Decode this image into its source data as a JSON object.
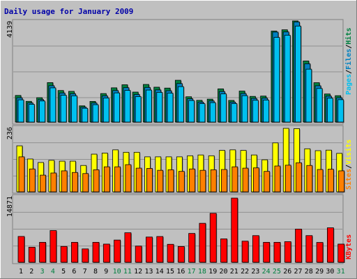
{
  "title": "Daily usage for January 2009",
  "colors": {
    "background": "#c0c0c0",
    "pages": "#00c0f0",
    "files": "#0080c0",
    "hits": "#008040",
    "visits": "#ffff00",
    "sites": "#ff8000",
    "kbytes": "#ff0000",
    "title": "#0000a8",
    "weekend_label": "#008040"
  },
  "chart_data": [
    {
      "type": "bar",
      "panel": "hits",
      "max_label": "4139",
      "ylim": [
        0,
        4139
      ],
      "legend": [
        "Pages",
        "Files",
        "Hits"
      ],
      "categories": [
        "1",
        "2",
        "3",
        "4",
        "5",
        "6",
        "7",
        "8",
        "9",
        "10",
        "11",
        "12",
        "13",
        "14",
        "15",
        "16",
        "17",
        "18",
        "19",
        "20",
        "21",
        "22",
        "23",
        "24",
        "25",
        "26",
        "27",
        "28",
        "29",
        "30",
        "31"
      ],
      "weekend_days": [
        "3",
        "4",
        "10",
        "11",
        "17",
        "18",
        "24",
        "25",
        "31"
      ],
      "series": [
        {
          "name": "Hits",
          "values": [
            1090,
            848,
            998,
            1615,
            1292,
            1257,
            664,
            845,
            1166,
            1402,
            1527,
            1227,
            1540,
            1428,
            1391,
            1711,
            1036,
            890,
            938,
            1359,
            887,
            1269,
            1051,
            1064,
            3723,
            3777,
            4139,
            2501,
            1612,
            1150,
            1080
          ]
        },
        {
          "name": "Files",
          "values": [
            995,
            784,
            920,
            1488,
            1191,
            1159,
            611,
            779,
            1073,
            1291,
            1407,
            1129,
            1418,
            1317,
            1283,
            1577,
            954,
            816,
            864,
            1250,
            816,
            1169,
            968,
            981,
            3684,
            3689,
            4097,
            2387,
            1486,
            1060,
            995
          ]
        },
        {
          "name": "Pages",
          "values": [
            910,
            726,
            864,
            1401,
            1100,
            1076,
            564,
            712,
            987,
            1194,
            1296,
            1043,
            1310,
            1216,
            1185,
            1451,
            883,
            754,
            796,
            1155,
            757,
            1081,
            893,
            903,
            3465,
            3553,
            3930,
            2165,
            1376,
            978,
            917
          ]
        }
      ]
    },
    {
      "type": "bar",
      "panel": "visits",
      "max_label": "236",
      "ylim": [
        0,
        236
      ],
      "legend": [
        "Sites",
        "Visits"
      ],
      "categories": [
        "1",
        "2",
        "3",
        "4",
        "5",
        "6",
        "7",
        "8",
        "9",
        "10",
        "11",
        "12",
        "13",
        "14",
        "15",
        "16",
        "17",
        "18",
        "19",
        "20",
        "21",
        "22",
        "23",
        "24",
        "25",
        "26",
        "27",
        "28",
        "29",
        "30",
        "31"
      ],
      "series": [
        {
          "name": "Visits",
          "values": [
            171,
            122,
            109,
            117,
            114,
            114,
            98,
            140,
            144,
            156,
            147,
            147,
            130,
            130,
            130,
            130,
            134,
            137,
            134,
            154,
            156,
            154,
            137,
            119,
            182,
            236,
            235,
            160,
            153,
            155,
            143
          ]
        },
        {
          "name": "Sites",
          "values": [
            130,
            85,
            62,
            70,
            78,
            72,
            68,
            82,
            93,
            93,
            101,
            88,
            87,
            80,
            82,
            76,
            85,
            80,
            82,
            83,
            93,
            88,
            89,
            76,
            96,
            99,
            108,
            98,
            83,
            84,
            78
          ]
        }
      ]
    },
    {
      "type": "bar",
      "panel": "kbytes",
      "max_label": "14871",
      "ylim": [
        0,
        14871
      ],
      "legend": [
        "KBytes"
      ],
      "categories": [
        "1",
        "2",
        "3",
        "4",
        "5",
        "6",
        "7",
        "8",
        "9",
        "10",
        "11",
        "12",
        "13",
        "14",
        "15",
        "16",
        "17",
        "18",
        "19",
        "20",
        "21",
        "22",
        "23",
        "24",
        "25",
        "26",
        "27",
        "28",
        "29",
        "30",
        "31"
      ],
      "series": [
        {
          "name": "KBytes",
          "values": [
            5987,
            3493,
            4626,
            7356,
            3672,
            4626,
            3101,
            4626,
            4212,
            5152,
            6844,
            3758,
            5848,
            5971,
            4164,
            3656,
            6683,
            9031,
            11352,
            5425,
            14871,
            4893,
            6179,
            4626,
            4626,
            4777,
            7686,
            6184,
            4597,
            7988,
            4212
          ]
        }
      ]
    }
  ]
}
